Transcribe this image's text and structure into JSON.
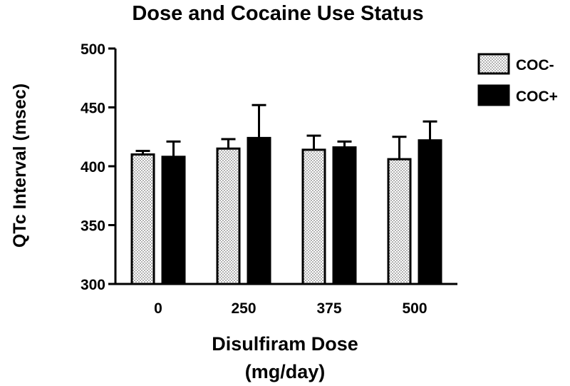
{
  "chart_data": {
    "type": "bar",
    "title": "Dose and Cocaine Use Status",
    "xlabel": [
      "Disulfiram Dose",
      "(mg/day)"
    ],
    "ylabel": "QTc Interval (msec)",
    "categories": [
      "0",
      "250",
      "375",
      "500"
    ],
    "ylim": [
      300,
      500
    ],
    "yticks": [
      "300",
      "350",
      "400",
      "450",
      "500"
    ],
    "grid": false,
    "legend_position": "top-right",
    "series": [
      {
        "name": "COC-",
        "fill": "dotted",
        "values": [
          410,
          415,
          414,
          406
        ],
        "error_upper": [
          413,
          423,
          426,
          425
        ]
      },
      {
        "name": "COC+",
        "fill": "black",
        "values": [
          408,
          424,
          416,
          422
        ],
        "error_upper": [
          421,
          452,
          421,
          438
        ]
      }
    ]
  }
}
